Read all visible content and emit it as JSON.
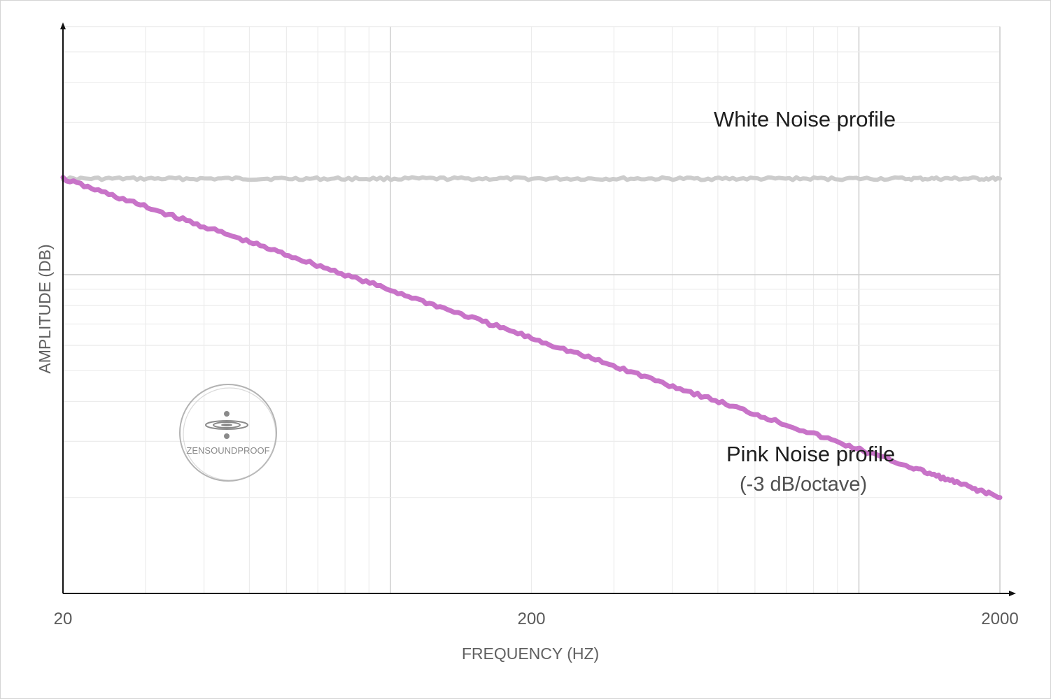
{
  "chart_data": {
    "type": "line",
    "x_scale": "log",
    "y_scale": "log",
    "xlabel": "FREQUENCY (HZ)",
    "ylabel": "AMPLITUDE (DB)",
    "xlim": [
      20,
      2000
    ],
    "ylim": [
      0.1,
      6
    ],
    "x_ticks": [
      "20",
      "200",
      "2000"
    ],
    "grid": true,
    "series": [
      {
        "name": "White Noise profile",
        "color": "#cccccc",
        "x": [
          20,
          40,
          80,
          160,
          320,
          640,
          1280,
          2000
        ],
        "y": [
          2.0,
          2.0,
          2.0,
          2.0,
          2.0,
          2.0,
          2.0,
          2.0
        ]
      },
      {
        "name": "Pink Noise profile",
        "color": "#c873c8",
        "x": [
          20,
          40,
          80,
          160,
          320,
          640,
          1280,
          2000
        ],
        "y": [
          2.0,
          1.414,
          1.0,
          0.707,
          0.5,
          0.354,
          0.25,
          0.2
        ]
      }
    ],
    "annotations": [
      {
        "text": "White Noise profile",
        "series": 0
      },
      {
        "text": "Pink Noise profile",
        "series": 1
      },
      {
        "text": "(-3 dB/octave)",
        "series": 1
      }
    ]
  },
  "watermark": {
    "text": "ZENSOUNDPROOF",
    "icon": "water-drop-ripple-icon"
  }
}
